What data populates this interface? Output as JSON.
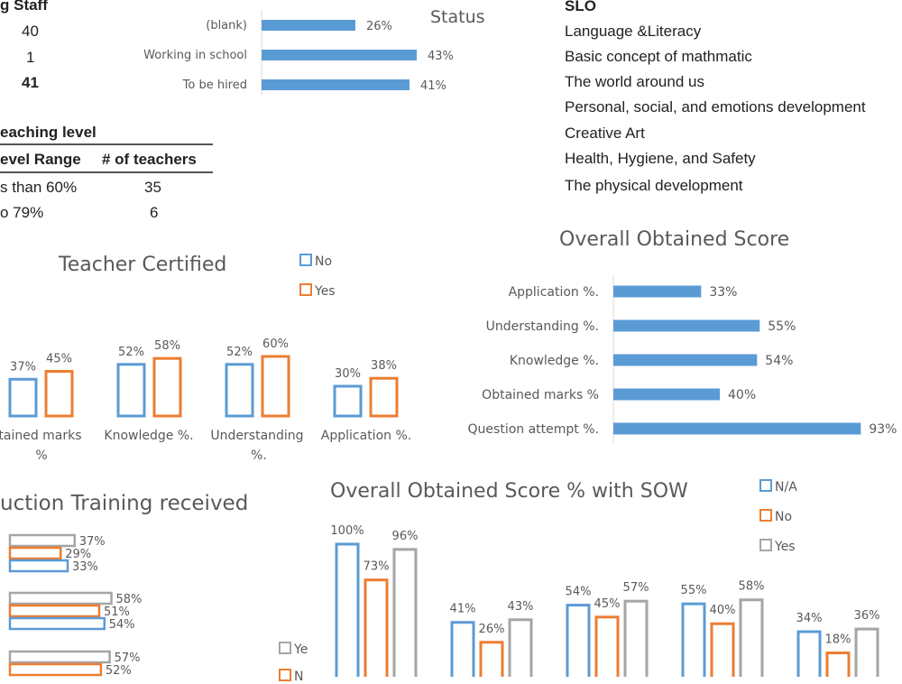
{
  "staff": {
    "header": "g Staff",
    "values": [
      "40",
      "1",
      "41"
    ]
  },
  "teaching": {
    "title": "eaching level",
    "col1": "evel Range",
    "col2": "# of teachers",
    "rows": [
      {
        "range": "s than 60%",
        "count": "35"
      },
      {
        "range": "o 79%",
        "count": "6"
      }
    ]
  },
  "slo": {
    "title": "SLO",
    "items": [
      "Language &Literacy",
      "Basic concept of mathmatic",
      "The world around us",
      "Personal, social, and emotions development",
      "Creative Art",
      "Health, Hygiene, and Safety",
      "The physical development"
    ]
  },
  "colors": {
    "blue": "#5b9bd5",
    "orange": "#ed7d31",
    "gray": "#a5a5a5",
    "text": "#595959"
  },
  "chart_data": [
    {
      "id": "status",
      "type": "bar",
      "orientation": "horizontal",
      "title": "Status",
      "categories": [
        "(blank)",
        "Working in school",
        "To be hired"
      ],
      "values": [
        26,
        43,
        41
      ],
      "labels": [
        "26%",
        "43%",
        "41%"
      ]
    },
    {
      "id": "teacher_certified",
      "type": "bar",
      "title": "Teacher Certified",
      "categories": [
        "btained marks %",
        "Knowledge %.",
        "Understanding %.",
        "Application %."
      ],
      "series": [
        {
          "name": "No",
          "values": [
            37,
            52,
            52,
            30
          ],
          "labels": [
            "37%",
            "52%",
            "52%",
            "30%"
          ]
        },
        {
          "name": "Yes",
          "values": [
            45,
            58,
            60,
            38
          ],
          "labels": [
            "45%",
            "58%",
            "60%",
            "38%"
          ]
        }
      ]
    },
    {
      "id": "overall_score",
      "type": "bar",
      "orientation": "horizontal",
      "title": "Overall Obtained Score",
      "categories": [
        "Application %.",
        "Understanding %.",
        "Knowledge %.",
        "Obtained marks %",
        "Question attempt %."
      ],
      "values": [
        33,
        55,
        54,
        40,
        93
      ],
      "labels": [
        "33%",
        "55%",
        "54%",
        "40%",
        "93%"
      ]
    },
    {
      "id": "induction_training",
      "type": "bar",
      "orientation": "horizontal",
      "title": "uction Training received",
      "legend_visible": [
        "Ye",
        "N"
      ],
      "groups": [
        {
          "values": [
            37,
            29,
            33
          ],
          "labels": [
            "37%",
            "29%",
            "33%"
          ]
        },
        {
          "values": [
            58,
            51,
            54
          ],
          "labels": [
            "58%",
            "51%",
            "54%"
          ]
        },
        {
          "values": [
            57,
            52
          ],
          "labels": [
            "57%",
            "52%"
          ]
        }
      ]
    },
    {
      "id": "score_with_sow",
      "type": "bar",
      "title": "Overall Obtained Score % with SOW",
      "series": [
        {
          "name": "N/A",
          "values": [
            100,
            41,
            54,
            55,
            34
          ],
          "labels": [
            "100%",
            "41%",
            "54%",
            "55%",
            "34%"
          ]
        },
        {
          "name": "No",
          "values": [
            73,
            26,
            45,
            40,
            18
          ],
          "labels": [
            "73%",
            "26%",
            "45%",
            "40%",
            "18%"
          ]
        },
        {
          "name": "Yes",
          "values": [
            96,
            43,
            57,
            58,
            36
          ],
          "labels": [
            "96%",
            "43%",
            "57%",
            "58%",
            "36%"
          ]
        }
      ]
    }
  ]
}
